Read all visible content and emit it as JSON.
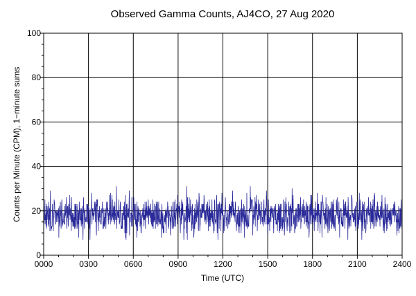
{
  "chart_data": {
    "type": "line",
    "title": "Observed Gamma Counts, AJ4CO, 27 Aug 2020",
    "xlabel": "Time (UTC)",
    "ylabel": "Counts per Minute (CPM), 1−minute sums",
    "x_ticks": [
      "0000",
      "0300",
      "0600",
      "0900",
      "1200",
      "1500",
      "1800",
      "2100",
      "2400"
    ],
    "y_ticks": [
      "0",
      "20",
      "40",
      "60",
      "80",
      "100"
    ],
    "xlim": [
      0,
      1440
    ],
    "ylim": [
      0,
      100
    ],
    "x_unit": "minutes after 0000 UTC",
    "grid": true,
    "series": [
      {
        "color": "#2a2a9a",
        "sampling": "1-minute sums",
        "approx_mean": 18,
        "approx_min": 7,
        "approx_max": 31
      }
    ]
  }
}
